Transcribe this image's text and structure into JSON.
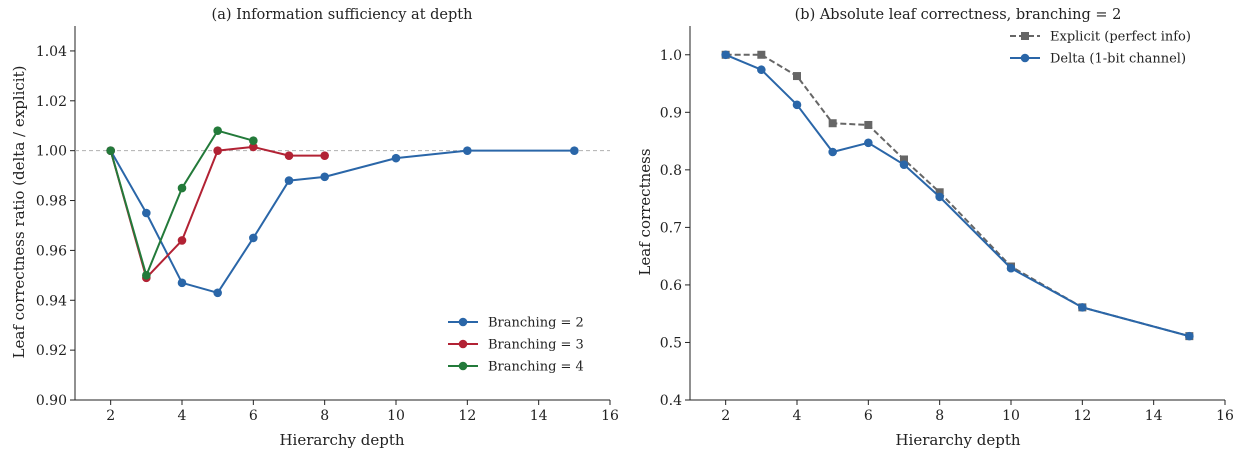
{
  "colors": {
    "blue": "#2a66a8",
    "red": "#b22234",
    "green": "#237a3a",
    "gray": "#666666",
    "reference_line": "#b0b0b0",
    "axis": "#222222"
  },
  "chart_data": [
    {
      "type": "line",
      "title": "(a) Information sufficiency at depth",
      "xlabel": "Hierarchy depth",
      "ylabel": "Leaf correctness ratio (delta / explicit)",
      "xlim": [
        1,
        16
      ],
      "ylim": [
        0.9,
        1.05
      ],
      "xticks": [
        2,
        4,
        6,
        8,
        10,
        12,
        14,
        16
      ],
      "yticks": [
        0.9,
        0.92,
        0.94,
        0.96,
        0.98,
        1.0,
        1.02,
        1.04
      ],
      "ytick_labels": [
        "0.90",
        "0.92",
        "0.94",
        "0.96",
        "0.98",
        "1.00",
        "1.02",
        "1.04"
      ],
      "reference_line": {
        "y": 1.0,
        "style": "dashed"
      },
      "grid": false,
      "legend_position": "lower-right",
      "series": [
        {
          "name": "Branching = 2",
          "color": "#2a66a8",
          "marker": "circle",
          "line": "solid",
          "x": [
            2,
            3,
            4,
            5,
            6,
            7,
            8,
            10,
            12,
            15
          ],
          "y": [
            1.0,
            0.975,
            0.947,
            0.943,
            0.965,
            0.988,
            0.9895,
            0.997,
            1.0,
            1.0
          ]
        },
        {
          "name": "Branching = 3",
          "color": "#b22234",
          "marker": "circle",
          "line": "solid",
          "x": [
            2,
            3,
            4,
            5,
            6,
            7,
            8
          ],
          "y": [
            1.0,
            0.949,
            0.964,
            1.0,
            1.0015,
            0.998,
            0.998
          ]
        },
        {
          "name": "Branching = 4",
          "color": "#237a3a",
          "marker": "circle",
          "line": "solid",
          "x": [
            2,
            3,
            4,
            5,
            6
          ],
          "y": [
            1.0,
            0.95,
            0.985,
            1.008,
            1.004
          ]
        }
      ]
    },
    {
      "type": "line",
      "title": "(b) Absolute leaf correctness, branching = 2",
      "xlabel": "Hierarchy depth",
      "ylabel": "Leaf correctness",
      "xlim": [
        1,
        16
      ],
      "ylim": [
        0.4,
        1.05
      ],
      "xticks": [
        2,
        4,
        6,
        8,
        10,
        12,
        14,
        16
      ],
      "yticks": [
        0.4,
        0.5,
        0.6,
        0.7,
        0.8,
        0.9,
        1.0
      ],
      "ytick_labels": [
        "0.4",
        "0.5",
        "0.6",
        "0.7",
        "0.8",
        "0.9",
        "1.0"
      ],
      "grid": false,
      "legend_position": "upper-right",
      "series": [
        {
          "name": "Explicit (perfect info)",
          "color": "#666666",
          "marker": "square",
          "line": "dashed",
          "x": [
            2,
            3,
            4,
            5,
            6,
            7,
            8,
            10,
            12,
            15
          ],
          "y": [
            1.0,
            1.0,
            0.963,
            0.881,
            0.878,
            0.818,
            0.761,
            0.632,
            0.561,
            0.511
          ]
        },
        {
          "name": "Delta (1-bit channel)",
          "color": "#2a66a8",
          "marker": "circle",
          "line": "solid",
          "x": [
            2,
            3,
            4,
            5,
            6,
            7,
            8,
            10,
            12,
            15
          ],
          "y": [
            1.0,
            0.974,
            0.913,
            0.831,
            0.847,
            0.809,
            0.753,
            0.629,
            0.561,
            0.511
          ]
        }
      ]
    }
  ]
}
